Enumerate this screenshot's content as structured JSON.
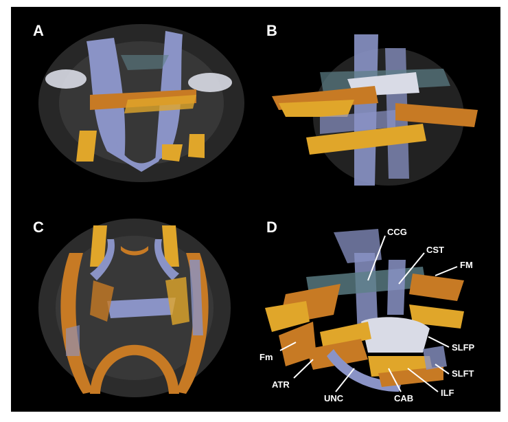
{
  "panels": [
    {
      "id": "A",
      "label": "A"
    },
    {
      "id": "B",
      "label": "B"
    },
    {
      "id": "C",
      "label": "C"
    },
    {
      "id": "D",
      "label": "D"
    }
  ],
  "tract_labels": {
    "ccg": "CCG",
    "cst": "CST",
    "fm_upper": "FM",
    "slfp": "SLFP",
    "slft": "SLFT",
    "ilf": "ILF",
    "cab": "CAB",
    "unc": "UNC",
    "atr": "ATR",
    "fm_lower": "Fm"
  },
  "colors": {
    "background": "#000000",
    "blue_tract": "#8a93c6",
    "orange_tract": "#c77a24",
    "yellow_tract": "#e0a62a",
    "white_tract": "#d9dbe6",
    "brain_gray": "#4a4a4a",
    "teal_tract": "#5d7f87"
  }
}
